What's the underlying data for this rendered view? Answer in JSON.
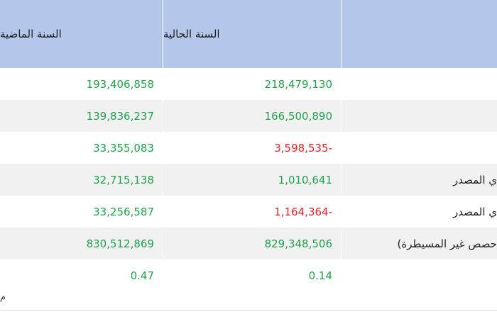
{
  "header": {
    "current_year": "السنة الحالية",
    "previous_year": "السنة الماضية"
  },
  "rows": [
    {
      "label": "",
      "current": "218,479,130",
      "previous": "193,406,858",
      "current_sign": "pos",
      "previous_sign": "pos"
    },
    {
      "label": "",
      "current": "166,500,890",
      "previous": "139,836,237",
      "current_sign": "pos",
      "previous_sign": "pos"
    },
    {
      "label": "",
      "current": "3,598,535-",
      "previous": "33,355,083",
      "current_sign": "neg",
      "previous_sign": "pos"
    },
    {
      "label": "ي المصدر",
      "current": "1,010,641",
      "previous": "32,715,138",
      "current_sign": "pos",
      "previous_sign": "pos"
    },
    {
      "label": "ي المصدر",
      "current": "1,164,364-",
      "previous": "33,256,587",
      "current_sign": "neg",
      "previous_sign": "pos"
    },
    {
      "label": "حصص غير المسيطرة)",
      "current": "829,348,506",
      "previous": "830,512,869",
      "current_sign": "pos",
      "previous_sign": "pos"
    },
    {
      "label": "",
      "current": "0.14",
      "previous": "0.47",
      "current_sign": "pos",
      "previous_sign": "pos"
    }
  ],
  "footer": {
    "fragment": "م"
  },
  "colors": {
    "header_bg": "#b4c7ea",
    "positive": "#1ea34a",
    "negative": "#e0242c",
    "alt_row": "#f1f1f1"
  }
}
